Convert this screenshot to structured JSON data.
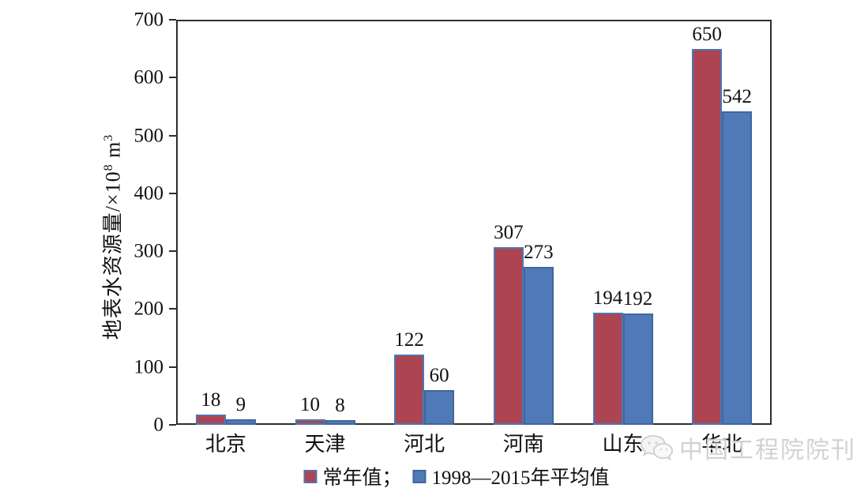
{
  "chart_data": {
    "type": "bar",
    "title": "",
    "categories": [
      "北京",
      "天津",
      "河北",
      "河南",
      "山东",
      "华北"
    ],
    "series": [
      {
        "name": "常年值",
        "color": "#ad4452",
        "border_color": "#4d76b2",
        "values": [
          18,
          10,
          122,
          307,
          194,
          650
        ]
      },
      {
        "name": "1998—2015年平均值",
        "color": "#5079b8",
        "border_color": "#41669c",
        "values": [
          9,
          8,
          60,
          273,
          192,
          542
        ]
      }
    ],
    "ylabel": "地表水资源量/×10⁸ m³",
    "ylabel_parts": {
      "prefix": "地表水资源量/×10",
      "sup1": "8",
      "mid": " m",
      "sup2": "3"
    },
    "xlabel": "",
    "ylim": [
      0,
      700
    ],
    "yticks": [
      0,
      100,
      200,
      300,
      400,
      500,
      600,
      700
    ],
    "grid": false,
    "legend_position": "bottom",
    "bar_value_labels": true
  },
  "legend": {
    "items": [
      {
        "label": "常年值；",
        "color": "#ad4452",
        "border_color": "#4d76b2"
      },
      {
        "label": "1998—2015年平均值",
        "color": "#5079b8",
        "border_color": "#41669c"
      }
    ]
  },
  "watermark": {
    "text": "中国工程院院刊",
    "icon": "wechat-icon"
  },
  "colors": {
    "axis": "#2e2e2e",
    "text": "#111111",
    "watermark": "#cfcfcf"
  }
}
